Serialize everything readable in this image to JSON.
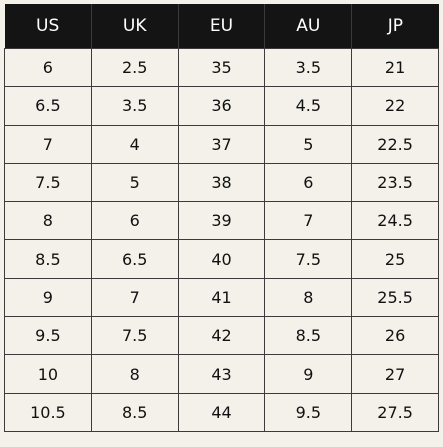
{
  "table": {
    "headers": [
      "US",
      "UK",
      "EU",
      "AU",
      "JP"
    ],
    "rows": [
      [
        "6",
        "2.5",
        "35",
        "3.5",
        "21"
      ],
      [
        "6.5",
        "3.5",
        "36",
        "4.5",
        "22"
      ],
      [
        "7",
        "4",
        "37",
        "5",
        "22.5"
      ],
      [
        "7.5",
        "5",
        "38",
        "6",
        "23.5"
      ],
      [
        "8",
        "6",
        "39",
        "7",
        "24.5"
      ],
      [
        "8.5",
        "6.5",
        "40",
        "7.5",
        "25"
      ],
      [
        "9",
        "7",
        "41",
        "8",
        "25.5"
      ],
      [
        "9.5",
        "7.5",
        "42",
        "8.5",
        "26"
      ],
      [
        "10",
        "8",
        "43",
        "9",
        "27"
      ],
      [
        "10.5",
        "8.5",
        "44",
        "9.5",
        "27.5"
      ]
    ]
  },
  "colors": {
    "header_bg": "#141414",
    "header_text": "#ffffff",
    "body_bg": "#f3f1ea",
    "grid": "#3b3b3b"
  }
}
